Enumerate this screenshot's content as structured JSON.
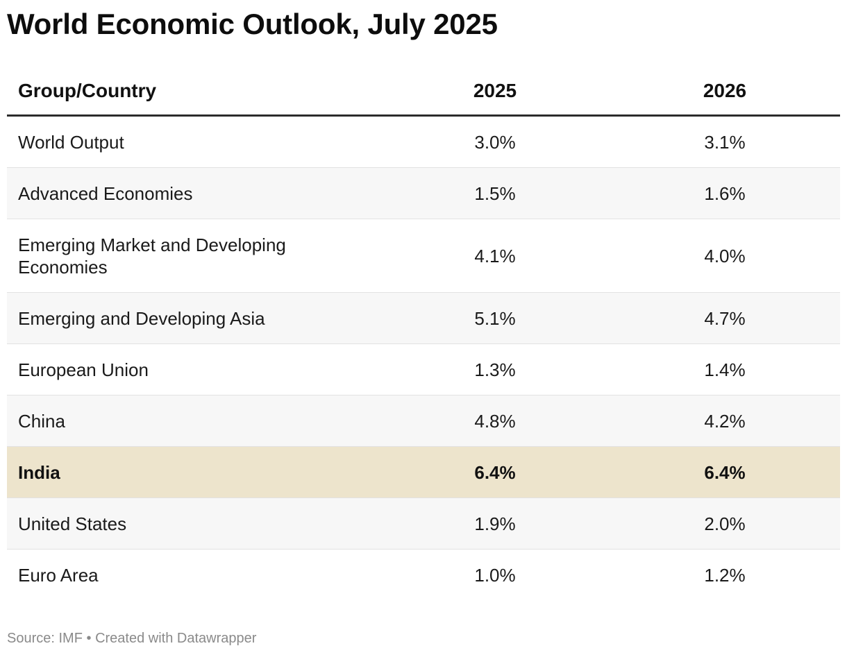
{
  "title": "World Economic Outlook, July 2025",
  "chart_data": {
    "type": "table",
    "title": "World Economic Outlook, July 2025",
    "columns": [
      "Group/Country",
      "2025",
      "2026"
    ],
    "rows": [
      [
        "World Output",
        "3.0%",
        "3.1%"
      ],
      [
        "Advanced Economies",
        "1.5%",
        "1.6%"
      ],
      [
        "Emerging Market and Developing Economies",
        "4.1%",
        "4.0%"
      ],
      [
        "Emerging and Developing Asia",
        "5.1%",
        "4.7%"
      ],
      [
        "European Union",
        "1.3%",
        "1.4%"
      ],
      [
        "China",
        "4.8%",
        "4.2%"
      ],
      [
        "India",
        "6.4%",
        "6.4%"
      ],
      [
        "United States",
        "1.9%",
        "2.0%"
      ],
      [
        "Euro Area",
        "1.0%",
        "1.2%"
      ]
    ],
    "highlighted_row": "India",
    "highlight_color": "#ede4cc",
    "stripe_color": "#f7f7f7"
  },
  "footer": {
    "source": "Source: IMF",
    "separator": "•",
    "credit": "Created with Datawrapper"
  }
}
